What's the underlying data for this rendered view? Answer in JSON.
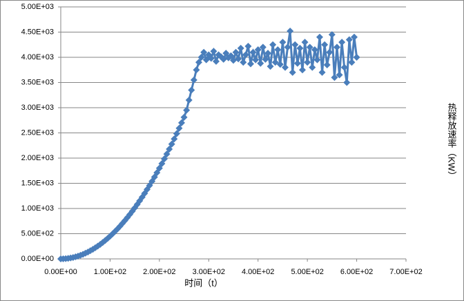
{
  "chart_data": {
    "type": "scatter",
    "x_label": "时间（t）",
    "y_label": "热释放速率（KW）",
    "xlim": [
      0,
      700
    ],
    "ylim": [
      0,
      5000
    ],
    "xticks": [
      {
        "value": 0,
        "label": "0.00E+00"
      },
      {
        "value": 100,
        "label": "1.00E+02"
      },
      {
        "value": 200,
        "label": "2.00E+02"
      },
      {
        "value": 300,
        "label": "3.00E+02"
      },
      {
        "value": 400,
        "label": "4.00E+02"
      },
      {
        "value": 500,
        "label": "5.00E+02"
      },
      {
        "value": 600,
        "label": "6.00E+02"
      },
      {
        "value": 700,
        "label": "7.00E+02"
      }
    ],
    "yticks": [
      {
        "value": 0,
        "label": "0.00E+00"
      },
      {
        "value": 500,
        "label": "5.00E+02"
      },
      {
        "value": 1000,
        "label": "1.00E+03"
      },
      {
        "value": 1500,
        "label": "1.50E+03"
      },
      {
        "value": 2000,
        "label": "2.00E+03"
      },
      {
        "value": 2500,
        "label": "2.50E+03"
      },
      {
        "value": 3000,
        "label": "3.00E+03"
      },
      {
        "value": 3500,
        "label": "3.50E+03"
      },
      {
        "value": 4000,
        "label": "4.00E+03"
      },
      {
        "value": 4500,
        "label": "4.50E+03"
      },
      {
        "value": 5000,
        "label": "5.00E+03"
      }
    ],
    "grid": true,
    "color": "#4a7ebb",
    "x": [
      0,
      5,
      10,
      15,
      20,
      25,
      30,
      35,
      40,
      45,
      50,
      55,
      60,
      65,
      70,
      75,
      80,
      85,
      90,
      95,
      100,
      105,
      110,
      115,
      120,
      125,
      130,
      135,
      140,
      145,
      150,
      155,
      160,
      165,
      170,
      175,
      180,
      185,
      190,
      195,
      200,
      205,
      210,
      215,
      220,
      225,
      230,
      235,
      240,
      245,
      250,
      255,
      260,
      265,
      270,
      275,
      280,
      285,
      290,
      295,
      300,
      305,
      310,
      315,
      320,
      325,
      330,
      335,
      340,
      345,
      350,
      355,
      360,
      365,
      370,
      375,
      380,
      385,
      390,
      395,
      400,
      405,
      410,
      415,
      420,
      425,
      430,
      435,
      440,
      445,
      450,
      455,
      460,
      465,
      470,
      475,
      480,
      485,
      490,
      495,
      500,
      505,
      510,
      515,
      520,
      525,
      530,
      535,
      540,
      545,
      550,
      555,
      560,
      565,
      570,
      575,
      580,
      585,
      590,
      595,
      600
    ],
    "values": [
      0,
      1,
      5,
      10,
      18,
      28,
      41,
      55,
      72,
      91,
      113,
      136,
      162,
      190,
      221,
      253,
      288,
      325,
      365,
      406,
      450,
      496,
      545,
      595,
      648,
      703,
      761,
      820,
      882,
      946,
      1012,
      1081,
      1152,
      1225,
      1300,
      1378,
      1458,
      1540,
      1624,
      1711,
      1800,
      1891,
      1984,
      2080,
      2178,
      2278,
      2380,
      2485,
      2592,
      2700,
      2810,
      2950,
      3150,
      3350,
      3550,
      3750,
      3900,
      4000,
      4100,
      3950,
      4050,
      3980,
      4120,
      3920,
      4050,
      4010,
      3960,
      4080,
      3990,
      4030,
      3940,
      4100,
      3970,
      4180,
      3900,
      4050,
      4220,
      3870,
      4100,
      3950,
      4150,
      3880,
      4200,
      3960,
      4080,
      3820,
      4250,
      3900,
      4150,
      3860,
      4300,
      3800,
      4200,
      4520,
      3700,
      4250,
      3880,
      4180,
      3750,
      4300,
      3900,
      4200,
      3800,
      4150,
      3950,
      4400,
      3700,
      4250,
      3850,
      4100,
      4450,
      3600,
      4200,
      3650,
      4300,
      3800,
      3500,
      4350,
      3900,
      4400,
      4000
    ]
  }
}
